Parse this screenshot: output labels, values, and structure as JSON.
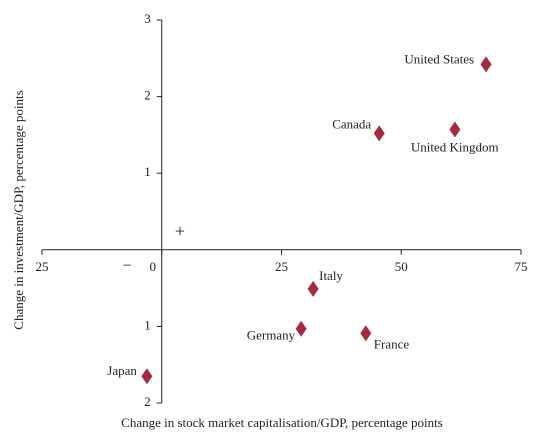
{
  "chart_data": {
    "type": "scatter",
    "xlabel": "Change in stock market capitalisation/GDP, percentage points",
    "ylabel": "Change in investment/GDP, percentage points",
    "annotations": [
      "−",
      "+"
    ],
    "color": "#a52a3f",
    "names": [
      "United States",
      "Canada",
      "United Kingdom",
      "Italy",
      "Germany",
      "France",
      "Japan"
    ],
    "x": [
      67.7,
      45.4,
      61.2,
      31.6,
      29.1,
      42.6,
      -3.1
    ],
    "values": [
      2.42,
      1.52,
      1.57,
      -0.51,
      -1.03,
      -1.09,
      -1.65
    ],
    "xlim": [
      -25,
      75
    ],
    "xticks": [
      {
        "value": -25,
        "label": "25"
      },
      0,
      25,
      50,
      75
    ],
    "ylim": [
      -2,
      3
    ],
    "yticks": [
      {
        "value": -2,
        "label": "2"
      },
      {
        "value": -1,
        "label": "1"
      },
      1,
      2,
      3
    ]
  }
}
